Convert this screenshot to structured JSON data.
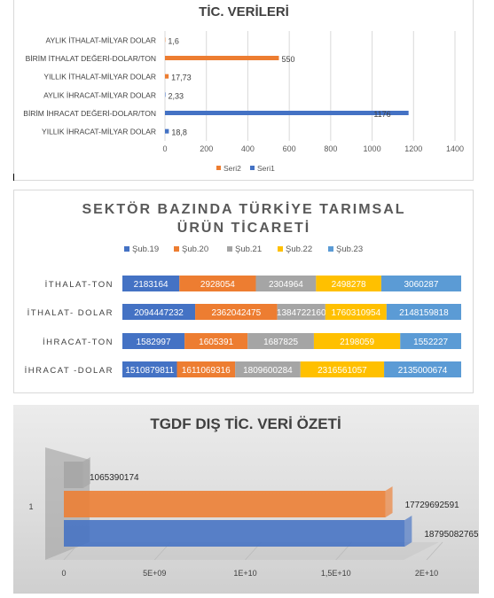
{
  "colors": {
    "orange": "#ed7d31",
    "blue": "#4472c4",
    "gray": "#a5a5a5",
    "yellow": "#ffc000",
    "lightblue": "#5b9bd5"
  },
  "chart_data": [
    {
      "type": "bar",
      "orientation": "horizontal",
      "title": "TİC. VERİLERİ",
      "categories": [
        "AYLIK İTHALAT-MİLYAR DOLAR",
        "BİRİM İTHALAT DEĞERİ-DOLAR/TON",
        "YILLIK İTHALAT-MİLYAR DOLAR",
        "AYLIK İHRACAT-MİLYAR DOLAR",
        "BİRİM İHRACAT DEĞERİ-DOLAR/TON",
        "YILLIK İHRACAT-MİLYAR DOLAR"
      ],
      "series": [
        {
          "name": "Seri2",
          "values": [
            1.6,
            550,
            17.73,
            null,
            null,
            null
          ],
          "labels": [
            "1,6",
            "550",
            "17,73",
            "",
            "",
            ""
          ]
        },
        {
          "name": "Seri1",
          "values": [
            null,
            null,
            null,
            2.33,
            1176,
            18.8
          ],
          "labels": [
            "",
            "",
            "",
            "2,33",
            "1176",
            "18,8"
          ]
        }
      ],
      "xlim": [
        0,
        1400
      ],
      "xticks": [
        "0",
        "200",
        "400",
        "600",
        "800",
        "1000",
        "1200",
        "1400"
      ],
      "grid": true,
      "legend": "bottom"
    },
    {
      "type": "bar",
      "orientation": "horizontal",
      "stacked": "percent",
      "title": "SEKTÖR BAZINDA TÜRKİYE TARIMSAL ÜRÜN TİCARETİ",
      "categories": [
        "İTHALAT-TON",
        "İTHALAT- DOLAR",
        "İHRACAT-TON",
        "İHRACAT -DOLAR"
      ],
      "series": [
        {
          "name": "Şub.19",
          "values": [
            2183164,
            2094447232,
            1582997,
            1510879811
          ],
          "labels": [
            "2183164",
            "2094447232",
            "1582997",
            "1510879811"
          ]
        },
        {
          "name": "Şub.20",
          "values": [
            2928054,
            2362042475,
            1605391,
            1611069316
          ],
          "labels": [
            "2928054",
            "2362042475",
            "1605391",
            "1611069316"
          ]
        },
        {
          "name": "Şub.21",
          "values": [
            2304964,
            1384722160,
            1687825,
            1809600284
          ],
          "labels": [
            "2304964",
            "1384722160",
            "1687825",
            "1809600284"
          ]
        },
        {
          "name": "Şub.22",
          "values": [
            2498278,
            1760310954,
            2198059,
            2316561057
          ],
          "labels": [
            "2498278",
            "1760310954",
            "2198059",
            "2316561057"
          ]
        },
        {
          "name": "Şub.23",
          "values": [
            3060287,
            2148159818,
            1552227,
            2135000674
          ],
          "labels": [
            "3060287",
            "2148159818",
            "1552227",
            "2135000674"
          ]
        }
      ],
      "legend": "top"
    },
    {
      "type": "bar",
      "orientation": "horizontal",
      "style": "3d",
      "title": "TGDF DIŞ TİC. VERİ ÖZETİ",
      "categories": [
        "1"
      ],
      "series": [
        {
          "name": "series-gray",
          "values": [
            1065390174
          ],
          "labels": [
            "1065390174"
          ]
        },
        {
          "name": "series-orange",
          "values": [
            17729692591
          ],
          "labels": [
            "17729692591"
          ]
        },
        {
          "name": "series-blue",
          "values": [
            18795082765
          ],
          "labels": [
            "18795082765"
          ]
        }
      ],
      "xlim": [
        0,
        20000000000
      ],
      "xticks": [
        "0",
        "5E+09",
        "1E+10",
        "1,5E+10",
        "2E+10"
      ]
    }
  ]
}
